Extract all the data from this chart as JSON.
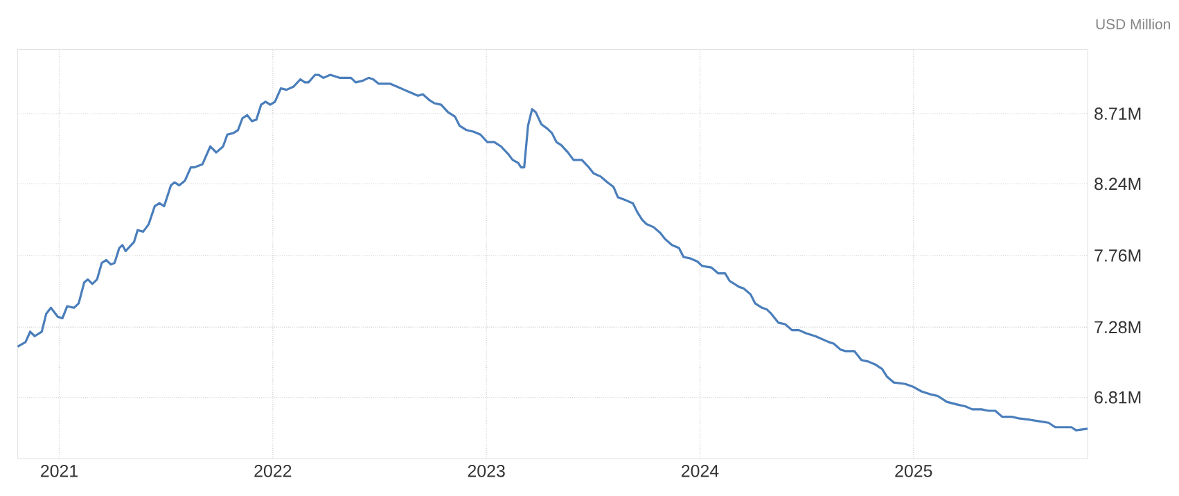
{
  "chart_data": {
    "type": "line",
    "ylabel": "USD Million",
    "xlim": [
      2020.805,
      2025.815
    ],
    "xticks": [
      2021,
      2022,
      2023,
      2024,
      2025
    ],
    "ylim": [
      6.4,
      9.14
    ],
    "yticks": [
      {
        "value": 6.81,
        "label": "6.81M"
      },
      {
        "value": 7.28,
        "label": "7.28M"
      },
      {
        "value": 7.76,
        "label": "7.76M"
      },
      {
        "value": 8.24,
        "label": "8.24M"
      },
      {
        "value": 8.71,
        "label": "8.71M"
      }
    ],
    "grid": true,
    "series": [
      {
        "color": "#4a7ebb",
        "x": [
          2020.805,
          2020.842,
          2020.864,
          2020.885,
          2020.918,
          2020.939,
          2020.961,
          2020.993,
          2021.015,
          2021.037,
          2021.069,
          2021.091,
          2021.117,
          2021.134,
          2021.155,
          2021.177,
          2021.199,
          2021.22,
          2021.242,
          2021.259,
          2021.281,
          2021.296,
          2021.311,
          2021.35,
          2021.367,
          2021.393,
          2021.419,
          2021.447,
          2021.469,
          2021.491,
          2021.523,
          2021.54,
          2021.562,
          2021.588,
          2021.616,
          2021.631,
          2021.67,
          2021.707,
          2021.722,
          2021.735,
          2021.767,
          2021.787,
          2021.815,
          2021.837,
          2021.858,
          2021.88,
          2021.902,
          2021.923,
          2021.945,
          2021.966,
          2021.988,
          2022.01,
          2022.038,
          2022.064,
          2022.096,
          2022.129,
          2022.15,
          2022.167,
          2022.198,
          2022.215,
          2022.237,
          2022.269,
          2022.312,
          2022.366,
          2022.388,
          2022.42,
          2022.449,
          2022.47,
          2022.496,
          2022.55,
          2022.583,
          2022.615,
          2022.648,
          2022.68,
          2022.702,
          2022.734,
          2022.756,
          2022.788,
          2022.82,
          2022.853,
          2022.874,
          2022.907,
          2022.939,
          2022.972,
          2023.004,
          2023.037,
          2023.069,
          2023.102,
          2023.123,
          2023.149,
          2023.162,
          2023.177,
          2023.195,
          2023.214,
          2023.231,
          2023.257,
          2023.285,
          2023.307,
          2023.328,
          2023.35,
          2023.382,
          2023.408,
          2023.447,
          2023.48,
          2023.502,
          2023.534,
          2023.567,
          2023.595,
          2023.616,
          2023.653,
          2023.686,
          2023.707,
          2023.729,
          2023.75,
          2023.783,
          2023.815,
          2023.837,
          2023.869,
          2023.902,
          2023.923,
          2023.956,
          2023.988,
          2024.01,
          2024.053,
          2024.086,
          2024.118,
          2024.139,
          2024.183,
          2024.204,
          2024.237,
          2024.258,
          2024.291,
          2024.312,
          2024.334,
          2024.367,
          2024.399,
          2024.431,
          2024.464,
          2024.496,
          2024.54,
          2024.572,
          2024.604,
          2024.626,
          2024.658,
          2024.68,
          2024.723,
          2024.756,
          2024.788,
          2024.821,
          2024.853,
          2024.875,
          2024.907,
          2024.961,
          2025.0,
          2025.037,
          2025.08,
          2025.113,
          2025.156,
          2025.21,
          2025.242,
          2025.275,
          2025.318,
          2025.35,
          2025.383,
          2025.415,
          2025.459,
          2025.491,
          2025.545,
          2025.588,
          2025.632,
          2025.664,
          2025.707,
          2025.74,
          2025.761,
          2025.815
        ],
        "values": [
          7.15,
          7.18,
          7.25,
          7.22,
          7.25,
          7.37,
          7.41,
          7.35,
          7.34,
          7.42,
          7.41,
          7.44,
          7.58,
          7.6,
          7.57,
          7.6,
          7.71,
          7.73,
          7.7,
          7.71,
          7.81,
          7.83,
          7.79,
          7.85,
          7.93,
          7.92,
          7.97,
          8.09,
          8.11,
          8.09,
          8.23,
          8.25,
          8.23,
          8.26,
          8.35,
          8.35,
          8.37,
          8.49,
          8.47,
          8.45,
          8.49,
          8.57,
          8.58,
          8.6,
          8.68,
          8.7,
          8.66,
          8.67,
          8.77,
          8.79,
          8.77,
          8.79,
          8.88,
          8.87,
          8.89,
          8.94,
          8.92,
          8.92,
          8.97,
          8.97,
          8.95,
          8.97,
          8.95,
          8.95,
          8.92,
          8.93,
          8.95,
          8.94,
          8.91,
          8.91,
          8.89,
          8.87,
          8.85,
          8.83,
          8.84,
          8.8,
          8.78,
          8.77,
          8.72,
          8.69,
          8.63,
          8.6,
          8.59,
          8.57,
          8.52,
          8.52,
          8.49,
          8.44,
          8.4,
          8.38,
          8.35,
          8.35,
          8.63,
          8.74,
          8.72,
          8.64,
          8.61,
          8.58,
          8.52,
          8.5,
          8.45,
          8.4,
          8.4,
          8.35,
          8.31,
          8.29,
          8.25,
          8.22,
          8.15,
          8.13,
          8.11,
          8.05,
          8.0,
          7.97,
          7.95,
          7.91,
          7.87,
          7.83,
          7.81,
          7.75,
          7.74,
          7.72,
          7.69,
          7.68,
          7.64,
          7.64,
          7.59,
          7.55,
          7.54,
          7.5,
          7.44,
          7.41,
          7.4,
          7.37,
          7.31,
          7.3,
          7.26,
          7.26,
          7.24,
          7.22,
          7.2,
          7.18,
          7.17,
          7.13,
          7.12,
          7.12,
          7.06,
          7.05,
          7.03,
          7.0,
          6.95,
          6.91,
          6.9,
          6.88,
          6.85,
          6.83,
          6.82,
          6.78,
          6.76,
          6.75,
          6.73,
          6.73,
          6.72,
          6.72,
          6.68,
          6.68,
          6.67,
          6.66,
          6.65,
          6.64,
          6.61,
          6.61,
          6.61,
          6.59,
          6.6
        ]
      }
    ]
  }
}
